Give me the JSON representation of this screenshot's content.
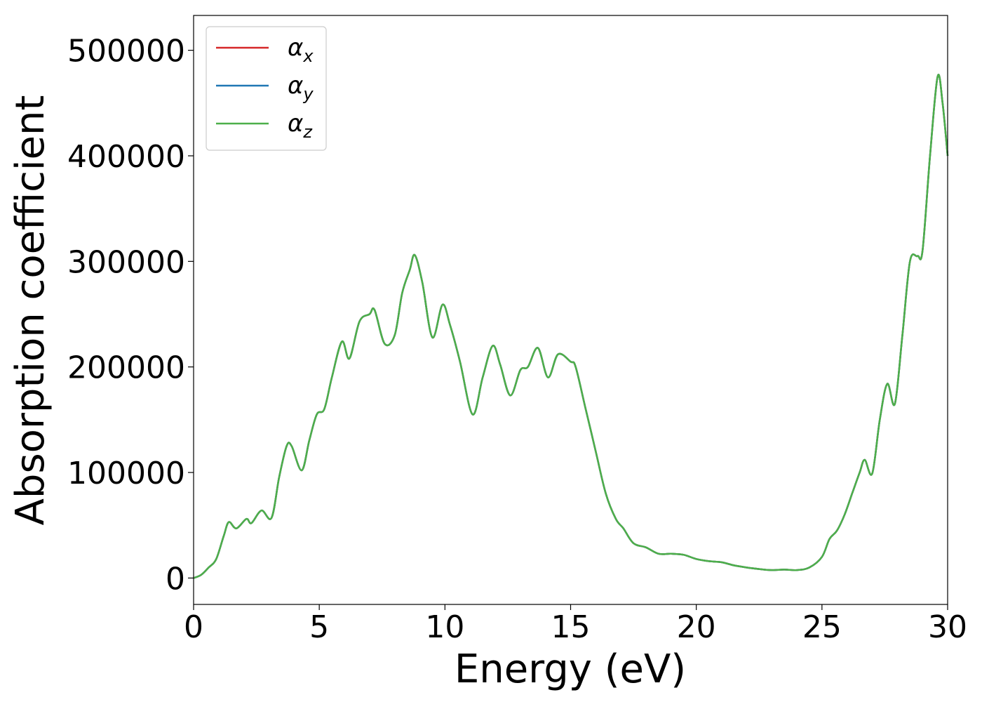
{
  "chart_data": {
    "type": "line",
    "xlabel": "Energy (eV)",
    "ylabel": "Absorption coefficient",
    "xlim": [
      0,
      30
    ],
    "ylim": [
      -25000,
      533000
    ],
    "xticks": [
      0,
      5,
      10,
      15,
      20,
      25,
      30
    ],
    "xtick_labels": [
      "0",
      "5",
      "10",
      "15",
      "20",
      "25",
      "30"
    ],
    "yticks": [
      0,
      100000,
      200000,
      300000,
      400000,
      500000
    ],
    "ytick_labels": [
      "0",
      "100000",
      "200000",
      "300000",
      "400000",
      "500000"
    ],
    "grid": false,
    "legend_position": "top-left",
    "series": [
      {
        "name": "α",
        "subscript": "x",
        "color": "#d62728"
      },
      {
        "name": "α",
        "subscript": "y",
        "color": "#1f77b4"
      },
      {
        "name": "α",
        "subscript": "z",
        "color": "#4daf4a"
      }
    ],
    "x": [
      0,
      0.3,
      0.6,
      0.9,
      1.2,
      1.4,
      1.7,
      2.1,
      2.3,
      2.7,
      3.1,
      3.4,
      3.7,
      3.9,
      4.3,
      4.6,
      4.9,
      5.2,
      5.5,
      5.9,
      6.2,
      6.6,
      7.0,
      7.2,
      7.6,
      8.0,
      8.3,
      8.6,
      8.8,
      9.1,
      9.5,
      9.9,
      10.2,
      10.6,
      11.1,
      11.5,
      11.9,
      12.2,
      12.6,
      13.0,
      13.3,
      13.7,
      14.1,
      14.5,
      15.0,
      15.2,
      15.6,
      16.0,
      16.4,
      16.8,
      17.1,
      17.5,
      18.0,
      18.5,
      19.0,
      19.5,
      20.0,
      20.5,
      21.0,
      21.5,
      22.0,
      22.5,
      23.0,
      23.5,
      24.0,
      24.5,
      25.0,
      25.3,
      25.6,
      25.9,
      26.2,
      26.5,
      26.7,
      27.0,
      27.3,
      27.6,
      27.9,
      28.2,
      28.5,
      28.8,
      29.0,
      29.3,
      29.6,
      29.8,
      30.0
    ],
    "y": [
      0,
      3000,
      10000,
      18000,
      40000,
      53000,
      47000,
      56000,
      52000,
      64000,
      57000,
      95000,
      125000,
      125000,
      102000,
      130000,
      155000,
      160000,
      190000,
      224000,
      208000,
      243000,
      250000,
      254000,
      222000,
      230000,
      270000,
      292000,
      306000,
      280000,
      228000,
      259000,
      240000,
      205000,
      155000,
      190000,
      220000,
      202000,
      173000,
      197000,
      200000,
      218000,
      190000,
      212000,
      205000,
      200000,
      160000,
      120000,
      80000,
      56000,
      47000,
      33000,
      29000,
      23000,
      23000,
      22000,
      18000,
      16000,
      15000,
      12000,
      10000,
      8500,
      7500,
      8000,
      7500,
      10000,
      20000,
      37000,
      45000,
      60000,
      80000,
      100000,
      112000,
      99000,
      150000,
      184000,
      165000,
      230000,
      300000,
      305000,
      310000,
      400000,
      475000,
      450000,
      400000
    ]
  }
}
